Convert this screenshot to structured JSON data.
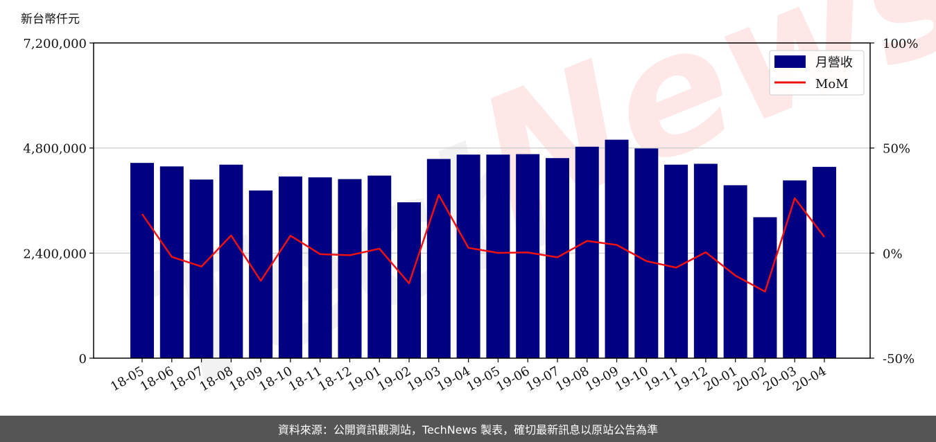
{
  "footer": {
    "source_text": "資料來源：公開資訊觀測站，TechNews 製表，確切最新訊息以原站公告為準"
  },
  "colors": {
    "bar": "#000080",
    "line": "#ee1111",
    "grid": "#d0d0d0",
    "footer_bg": "#555555"
  },
  "chart_data": {
    "type": "bar",
    "unit_label": "新台幣仟元",
    "categories": [
      "18-05",
      "18-06",
      "18-07",
      "18-08",
      "18-09",
      "18-10",
      "18-11",
      "18-12",
      "19-01",
      "19-02",
      "19-03",
      "19-04",
      "19-05",
      "19-06",
      "19-07",
      "19-08",
      "19-09",
      "19-10",
      "19-11",
      "19-12",
      "20-01",
      "20-02",
      "20-03",
      "20-04"
    ],
    "series": [
      {
        "name": "月營收",
        "axis": "left",
        "type": "bar",
        "values": [
          4460000,
          4380000,
          4080000,
          4420000,
          3830000,
          4150000,
          4130000,
          4090000,
          4170000,
          3560000,
          4550000,
          4650000,
          4650000,
          4660000,
          4570000,
          4830000,
          4990000,
          4790000,
          4420000,
          4440000,
          3950000,
          3220000,
          4060000,
          4370000
        ]
      },
      {
        "name": "MoM",
        "axis": "right",
        "type": "line",
        "values": [
          18.6,
          -1.8,
          -6.4,
          8.4,
          -13.2,
          8.3,
          -0.5,
          -1.0,
          2.1,
          -14.4,
          27.7,
          2.5,
          0.1,
          0.3,
          -2.0,
          5.8,
          3.9,
          -3.8,
          -6.9,
          0.4,
          -10.7,
          -18.3,
          26.1,
          7.7
        ]
      }
    ],
    "y_left": {
      "range": [
        0,
        7200000
      ],
      "ticks": [
        "0",
        "2,400,000",
        "4,800,000",
        "7,200,000"
      ],
      "tick_values": [
        0,
        2400000,
        4800000,
        7200000
      ]
    },
    "y_right": {
      "range": [
        -50,
        100
      ],
      "ticks": [
        "-50%",
        "0%",
        "50%",
        "100%"
      ],
      "tick_values": [
        -50,
        0,
        50,
        100
      ]
    },
    "grid": "horizontal",
    "legend": {
      "position": "top-right",
      "labels": [
        "月營收",
        "MoM"
      ]
    }
  }
}
